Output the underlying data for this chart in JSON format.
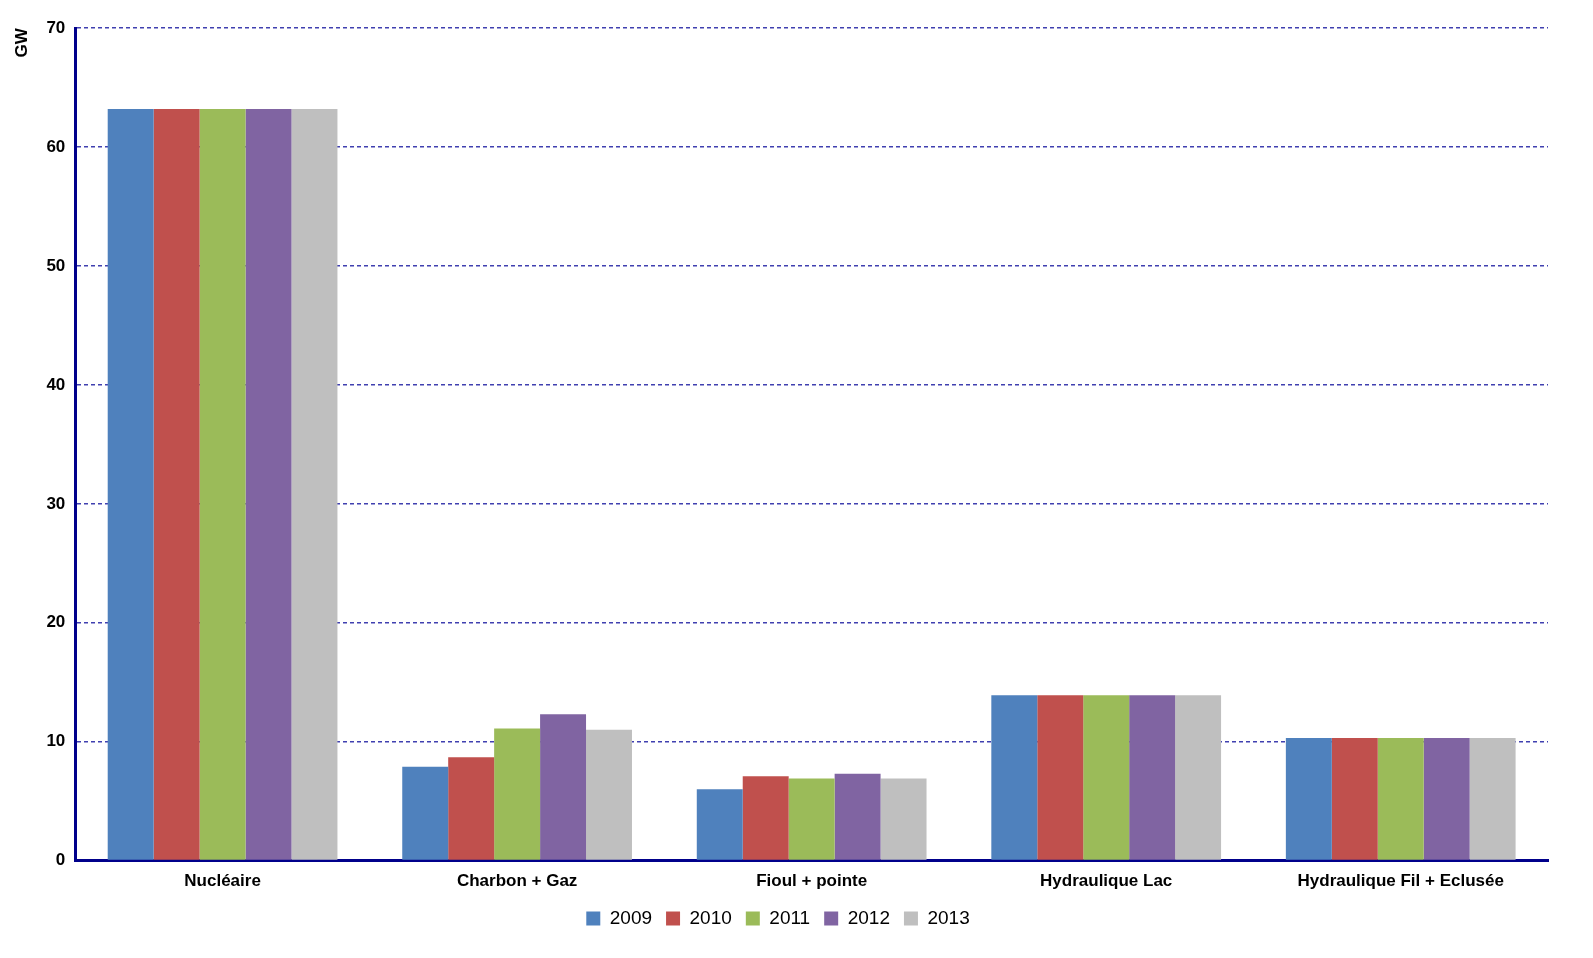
{
  "chart_data": {
    "type": "bar",
    "ylabel": "GW",
    "categories": [
      "Nucléaire",
      "Charbon + Gaz",
      "Fioul + pointe",
      "Hydraulique Lac",
      "Hydraulique Fil + Eclusée"
    ],
    "series": [
      {
        "name": "2009",
        "color": "#4f81bd",
        "values": [
          63.2,
          7.9,
          6.0,
          13.9,
          10.3
        ]
      },
      {
        "name": "2010",
        "color": "#c0504d",
        "values": [
          63.2,
          8.7,
          7.1,
          13.9,
          10.3
        ]
      },
      {
        "name": "2011",
        "color": "#9bbb59",
        "values": [
          63.2,
          11.1,
          6.9,
          13.9,
          10.3
        ]
      },
      {
        "name": "2012",
        "color": "#8064a2",
        "values": [
          63.2,
          12.3,
          7.3,
          13.9,
          10.3
        ]
      },
      {
        "name": "2013",
        "color": "#bfbfbf",
        "values": [
          63.2,
          11.0,
          6.9,
          13.9,
          10.3
        ]
      }
    ],
    "ylim": [
      0,
      70
    ],
    "yticks": [
      0,
      10,
      20,
      30,
      40,
      50,
      60,
      70
    ],
    "grid": "y",
    "legend": "bottom"
  }
}
